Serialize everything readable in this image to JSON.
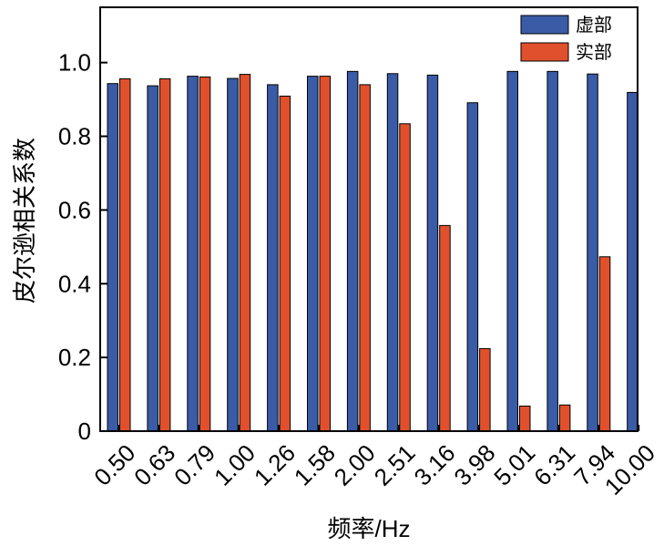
{
  "chart_data": {
    "type": "bar",
    "title": "",
    "xlabel": "频率/Hz",
    "ylabel": "皮尔逊相关系数",
    "categories": [
      "0.50",
      "0.63",
      "0.79",
      "1.00",
      "1.26",
      "1.58",
      "2.00",
      "2.51",
      "3.16",
      "3.98",
      "5.01",
      "6.31",
      "7.94",
      "10.00"
    ],
    "series": [
      {
        "name": "虚部",
        "color": "#3a5ba6",
        "values": [
          0.943,
          0.937,
          0.963,
          0.957,
          0.94,
          0.963,
          0.976,
          0.97,
          0.966,
          0.891,
          0.976,
          0.976,
          0.969,
          0.919
        ]
      },
      {
        "name": "实部",
        "color": "#e1502c",
        "values": [
          0.956,
          0.956,
          0.961,
          0.968,
          0.909,
          0.963,
          0.94,
          0.834,
          0.558,
          0.224,
          0.068,
          0.071,
          0.473,
          null
        ]
      }
    ],
    "ylim": [
      0,
      1.15
    ],
    "yticks": [
      "0",
      "0.2",
      "0.4",
      "0.6",
      "0.8",
      "1.0"
    ],
    "ytick_values": [
      0,
      0.2,
      0.4,
      0.6,
      0.8,
      1.0
    ],
    "grid": false,
    "legend": "top-right"
  }
}
